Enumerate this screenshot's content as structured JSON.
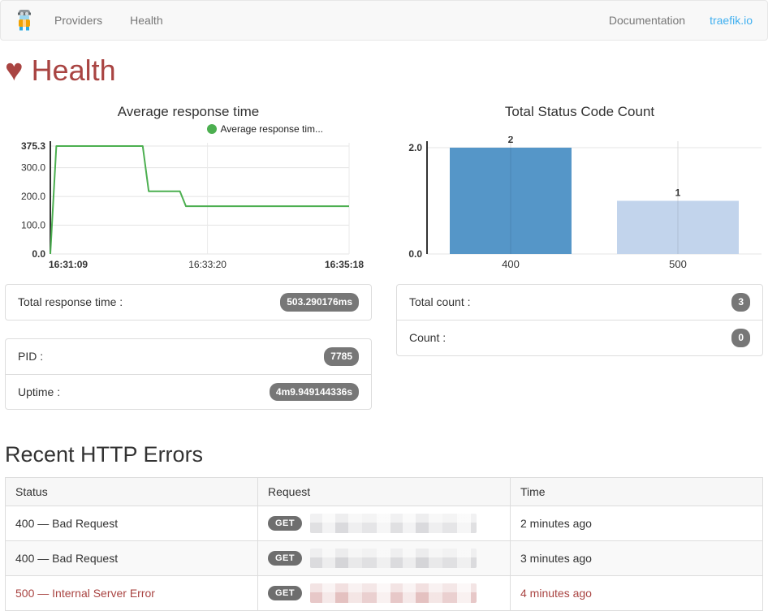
{
  "colors": {
    "brand_red": "#a94442",
    "link_blue": "#41b0f0",
    "nav_text": "#777777",
    "badge_bg": "#777777",
    "line_green": "#4caf50",
    "bar_blue_400": "#5596c8",
    "bar_blue_500": "#c2d4ec"
  },
  "navbar": {
    "brand_icon": "traefik-logo",
    "items": [
      {
        "label": "Providers"
      },
      {
        "label": "Health"
      }
    ],
    "right_items": [
      {
        "label": "Documentation"
      },
      {
        "label": "traefik.io"
      }
    ]
  },
  "page": {
    "heart_glyph": "♥",
    "title": "Health"
  },
  "chart_data": [
    {
      "type": "line",
      "title": "Average response time",
      "legend": {
        "label": "Average response tim...",
        "position": "top-right",
        "color": "#4caf50"
      },
      "x": [
        "16:31:09",
        "16:31:14",
        "16:32:26",
        "16:32:31",
        "16:32:57",
        "16:33:02",
        "16:35:18"
      ],
      "values": [
        0,
        375.3,
        375.3,
        218,
        218,
        166,
        166
      ],
      "x_ticks": [
        "16:31:09",
        "16:33:20",
        "16:35:18"
      ],
      "y_ticks": [
        "0.0",
        "100.0",
        "200.0",
        "300.0",
        "375.3"
      ],
      "ylim": [
        0,
        375.3
      ],
      "grid": true,
      "line_color": "#4caf50"
    },
    {
      "type": "bar",
      "title": "Total Status Code Count",
      "categories": [
        "400",
        "500"
      ],
      "values": [
        2,
        1
      ],
      "value_labels": [
        "2",
        "1"
      ],
      "bar_colors": [
        "#5596c8",
        "#c2d4ec"
      ],
      "y_ticks": [
        "0.0",
        "2.0"
      ],
      "ylim": [
        0,
        2
      ],
      "grid": true,
      "legend_position": "none"
    }
  ],
  "stats": {
    "response_time": {
      "label": "Total response time :",
      "value": "503.290176ms"
    },
    "process": [
      {
        "label": "PID :",
        "value": "7785"
      },
      {
        "label": "Uptime :",
        "value": "4m9.949144336s"
      }
    ],
    "counts": [
      {
        "label": "Total count :",
        "value": "3"
      },
      {
        "label": "Count :",
        "value": "0"
      }
    ]
  },
  "errors_table": {
    "title": "Recent HTTP Errors",
    "headers": [
      "Status",
      "Request",
      "Time"
    ],
    "rows": [
      {
        "status": "400 — Bad Request",
        "method": "GET",
        "time": "2 minutes ago",
        "tone": "normal"
      },
      {
        "status": "400 — Bad Request",
        "method": "GET",
        "time": "3 minutes ago",
        "tone": "normal"
      },
      {
        "status": "500 — Internal Server Error",
        "method": "GET",
        "time": "4 minutes ago",
        "tone": "danger"
      }
    ]
  }
}
